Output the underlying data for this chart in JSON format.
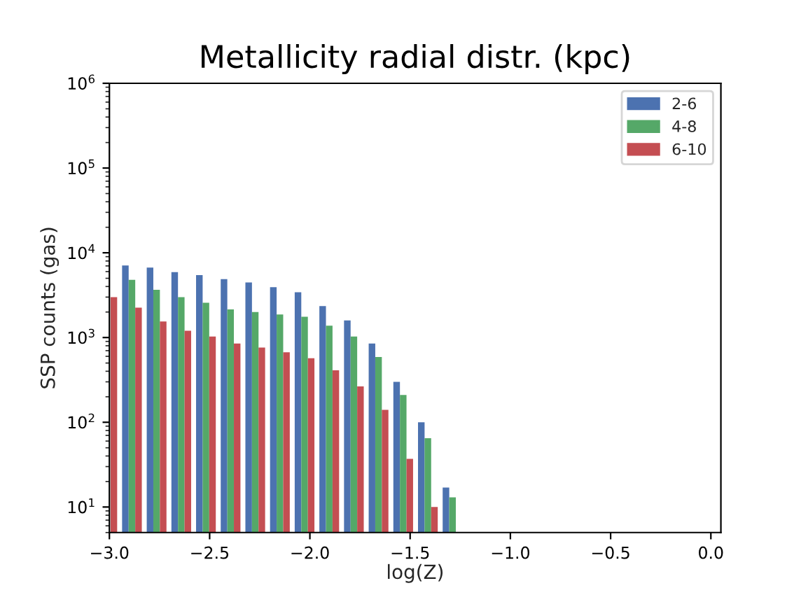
{
  "chart_data": {
    "type": "histogram",
    "title": "Metallicity radial distr. (kpc)",
    "xlabel": "log(Z)",
    "ylabel": "SSP counts (gas)",
    "bins": [
      -3.072,
      -2.949,
      -2.826,
      -2.703,
      -2.58,
      -2.457,
      -2.334,
      -2.211,
      -2.088,
      -1.965,
      -1.842,
      -1.719,
      -1.596,
      -1.473,
      -1.35,
      -1.227
    ],
    "series": [
      {
        "name": "2-6",
        "color": "#4c72b0",
        "values": [
          null,
          7100,
          6700,
          5900,
          5450,
          4900,
          4470,
          3930,
          3430,
          2350,
          1590,
          850,
          300,
          100,
          17
        ]
      },
      {
        "name": "4-8",
        "color": "#55a868",
        "values": [
          null,
          4800,
          3650,
          3000,
          2570,
          2150,
          2000,
          1870,
          1760,
          1380,
          1030,
          590,
          210,
          65,
          13
        ]
      },
      {
        "name": "6-10",
        "color": "#c44e52",
        "values": [
          3000,
          2250,
          1550,
          1200,
          1030,
          850,
          760,
          670,
          570,
          410,
          265,
          140,
          37,
          10,
          null
        ]
      }
    ],
    "log": "y",
    "xlim": [
      -3.0,
      0.05
    ],
    "ylim": [
      5,
      1000000
    ],
    "xticks": [
      {
        "value": -3.0,
        "label": "−3.0"
      },
      {
        "value": -2.5,
        "label": "−2.5"
      },
      {
        "value": -2.0,
        "label": "−2.0"
      },
      {
        "value": -1.5,
        "label": "−1.5"
      },
      {
        "value": -1.0,
        "label": "−1.0"
      },
      {
        "value": -0.5,
        "label": "−0.5"
      },
      {
        "value": 0.0,
        "label": "0.0"
      }
    ],
    "yticks": [
      {
        "value": 10,
        "label": "10$^{1}$"
      },
      {
        "value": 100,
        "label": "10$^{2}$"
      },
      {
        "value": 1000,
        "label": "10$^{3}$"
      },
      {
        "value": 10000,
        "label": "10$^{4}$"
      },
      {
        "value": 100000,
        "label": "10$^{5}$"
      },
      {
        "value": 1000000,
        "label": "10$^{6}$"
      }
    ],
    "legend": "top right"
  }
}
